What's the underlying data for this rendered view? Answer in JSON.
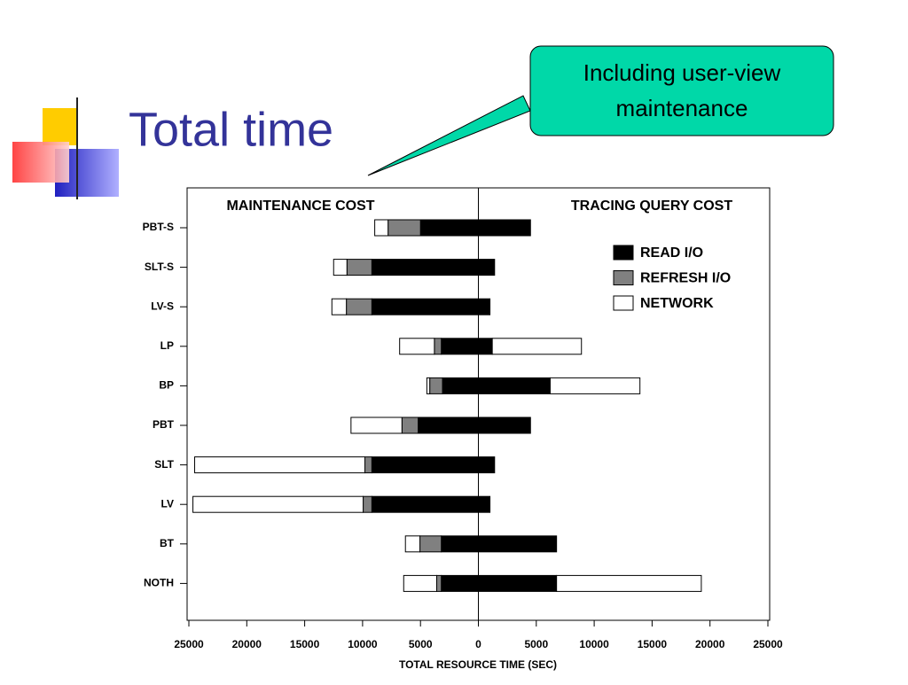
{
  "slide_title": "Total time",
  "callout": "Including user-view maintenance",
  "chart_data": {
    "type": "diverging_bar",
    "left_header": "MAINTENANCE COST",
    "right_header": "TRACING QUERY COST",
    "x_label": "TOTAL RESOURCE TIME (SEC)",
    "categories": [
      "PBT-S",
      "SLT-S",
      "LV-S",
      "LP",
      "BP",
      "PBT",
      "SLT",
      "LV",
      "BT",
      "NOTH"
    ],
    "series": [
      {
        "name": "READ I/O",
        "color": "#000000",
        "maintenance_values": [
          -5000,
          -9200,
          -9200,
          -3200,
          -3100,
          -5200,
          -9200,
          -9200,
          -3200,
          -3200
        ],
        "values": [
          4500,
          1400,
          1000,
          1200,
          6200,
          4500,
          1400,
          1000,
          6750,
          6750
        ]
      },
      {
        "name": "REFRESH I/O",
        "color": "#808080",
        "maintenance_values": [
          -2800,
          -2150,
          -2200,
          -600,
          -1100,
          -1400,
          -600,
          -750,
          -1850,
          -400
        ],
        "values": [
          0,
          0,
          0,
          0,
          0,
          0,
          0,
          0,
          0,
          0
        ]
      },
      {
        "name": "NETWORK",
        "color": "#ffffff",
        "maintenance_values": [
          -1150,
          -1150,
          -1250,
          -3000,
          -250,
          -4400,
          -14700,
          -14700,
          -1250,
          -2850
        ],
        "values": [
          0,
          0,
          0,
          7700,
          7750,
          0,
          0,
          0,
          0,
          12500
        ]
      }
    ],
    "xlim": [
      -25000,
      25000
    ],
    "xticks": [
      {
        "value": -25000,
        "label": "25000"
      },
      {
        "value": -20000,
        "label": "20000"
      },
      {
        "value": -15000,
        "label": "15000"
      },
      {
        "value": -10000,
        "label": "10000"
      },
      {
        "value": -5000,
        "label": "5000"
      },
      0,
      5000,
      10000,
      15000,
      20000,
      25000
    ],
    "legend": "upper right"
  }
}
